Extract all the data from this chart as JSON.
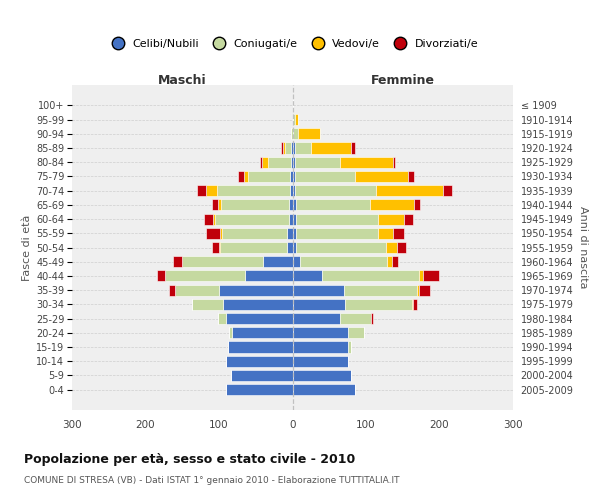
{
  "age_groups": [
    "0-4",
    "5-9",
    "10-14",
    "15-19",
    "20-24",
    "25-29",
    "30-34",
    "35-39",
    "40-44",
    "45-49",
    "50-54",
    "55-59",
    "60-64",
    "65-69",
    "70-74",
    "75-79",
    "80-84",
    "85-89",
    "90-94",
    "95-99",
    "100+"
  ],
  "birth_years": [
    "2005-2009",
    "2000-2004",
    "1995-1999",
    "1990-1994",
    "1985-1989",
    "1980-1984",
    "1975-1979",
    "1970-1974",
    "1965-1969",
    "1960-1964",
    "1955-1959",
    "1950-1954",
    "1945-1949",
    "1940-1944",
    "1935-1939",
    "1930-1934",
    "1925-1929",
    "1920-1924",
    "1915-1919",
    "1910-1914",
    "≤ 1909"
  ],
  "male": {
    "celibi": [
      90,
      83,
      90,
      88,
      82,
      90,
      95,
      100,
      65,
      40,
      8,
      8,
      5,
      5,
      3,
      3,
      2,
      2,
      0,
      0,
      0
    ],
    "coniugati": [
      0,
      0,
      0,
      0,
      5,
      12,
      42,
      60,
      108,
      110,
      90,
      88,
      100,
      92,
      100,
      58,
      32,
      8,
      2,
      0,
      0
    ],
    "vedovi": [
      0,
      0,
      0,
      0,
      0,
      0,
      0,
      0,
      0,
      0,
      2,
      2,
      3,
      5,
      15,
      5,
      8,
      3,
      0,
      0,
      0
    ],
    "divorziati": [
      0,
      0,
      0,
      0,
      0,
      0,
      0,
      8,
      12,
      12,
      10,
      20,
      12,
      8,
      12,
      8,
      2,
      3,
      0,
      0,
      0
    ]
  },
  "female": {
    "nubili": [
      85,
      80,
      75,
      75,
      75,
      65,
      72,
      70,
      40,
      10,
      5,
      5,
      5,
      5,
      3,
      3,
      3,
      3,
      0,
      0,
      0
    ],
    "coniugate": [
      0,
      0,
      0,
      5,
      22,
      42,
      90,
      100,
      132,
      118,
      122,
      112,
      112,
      100,
      110,
      82,
      62,
      22,
      8,
      3,
      0
    ],
    "vedove": [
      0,
      0,
      0,
      0,
      0,
      0,
      2,
      2,
      5,
      8,
      15,
      20,
      35,
      60,
      92,
      72,
      72,
      55,
      30,
      5,
      0
    ],
    "divorziate": [
      0,
      0,
      0,
      0,
      0,
      3,
      5,
      15,
      22,
      8,
      12,
      15,
      12,
      8,
      12,
      8,
      3,
      5,
      0,
      0,
      0
    ]
  },
  "colors": {
    "celibi_nubili": "#4472c4",
    "coniugati": "#c5d9a0",
    "vedovi": "#ffc000",
    "divorziati": "#c0000b"
  },
  "title": "Popolazione per età, sesso e stato civile - 2010",
  "subtitle": "COMUNE DI STRESA (VB) - Dati ISTAT 1° gennaio 2010 - Elaborazione TUTTITALIA.IT",
  "label_maschi": "Maschi",
  "label_femmine": "Femmine",
  "ylabel_left": "Fasce di età",
  "ylabel_right": "Anni di nascita",
  "legend_labels": [
    "Celibi/Nubili",
    "Coniugati/e",
    "Vedovi/e",
    "Divorziati/e"
  ],
  "xlim": 300,
  "bg_color": "#ffffff",
  "plot_bg_color": "#efefef",
  "grid_color": "#cccccc"
}
